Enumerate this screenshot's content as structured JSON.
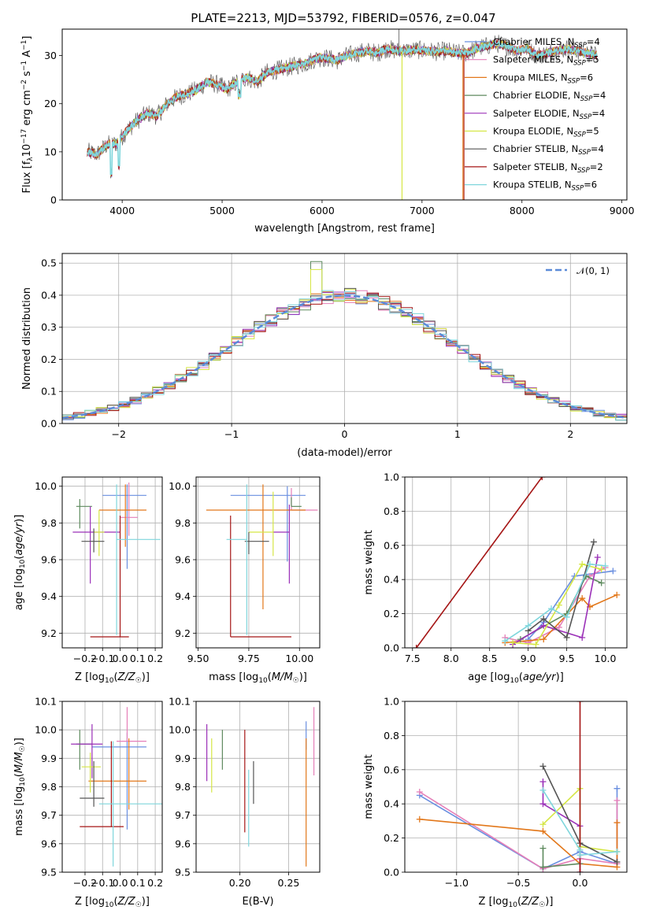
{
  "figure": {
    "title": "PLATE=2213, MJD=53792, FIBERID=0576, z=0.047"
  },
  "models": [
    {
      "name": "Chabrier MILES, N",
      "sub": "SSP",
      "n": "=4",
      "color": "#6a8fe0"
    },
    {
      "name": "Salpeter MILES, N",
      "sub": "SSP",
      "n": "=5",
      "color": "#e57fb8"
    },
    {
      "name": "Kroupa MILES, N",
      "sub": "SSP",
      "n": "=6",
      "color": "#e2771a"
    },
    {
      "name": "Chabrier ELODIE, N",
      "sub": "SSP",
      "n": "=4",
      "color": "#5e8a5e"
    },
    {
      "name": "Salpeter ELODIE, N",
      "sub": "SSP",
      "n": "=4",
      "color": "#9b30b8"
    },
    {
      "name": "Kroupa ELODIE, N",
      "sub": "SSP",
      "n": "=5",
      "color": "#d5e645"
    },
    {
      "name": "Chabrier STELIB, N",
      "sub": "SSP",
      "n": "=4",
      "color": "#555555"
    },
    {
      "name": "Salpeter STELIB, N",
      "sub": "SSP",
      "n": "=2",
      "color": "#a51515"
    },
    {
      "name": "Kroupa STELIB, N",
      "sub": "SSP",
      "n": "=6",
      "color": "#7fd6dc"
    }
  ],
  "chart_data": [
    {
      "id": "spectrum",
      "type": "line",
      "title": "PLATE=2213, MJD=53792, FIBERID=0576, z=0.047",
      "xlabel": "wavelength [Angstrom, rest frame]",
      "ylabel": "Flux [f_λ10^-17 erg cm^-2 s^-1 A^-1]",
      "xlim": [
        3400,
        9050
      ],
      "ylim": [
        0,
        35.5
      ],
      "xticks": [
        4000,
        5000,
        6000,
        7000,
        8000,
        9000
      ],
      "yticks": [
        0,
        10,
        20,
        30
      ],
      "grid": false,
      "legend": "top-right",
      "x": [
        3650,
        3750,
        3850,
        3950,
        4050,
        4150,
        4250,
        4350,
        4450,
        4550,
        4650,
        4750,
        4850,
        4950,
        5050,
        5150,
        5250,
        5350,
        5450,
        5550,
        5650,
        5750,
        5850,
        5950,
        6050,
        6150,
        6250,
        6350,
        6450,
        6550,
        6650,
        6750,
        6850,
        6950,
        7050,
        7150,
        7250,
        7350,
        7450,
        7550,
        7650,
        7750,
        7850,
        7950,
        8050,
        8150,
        8250,
        8350,
        8450,
        8550,
        8650,
        8750
      ],
      "y": [
        10.0,
        9.5,
        11.5,
        11.8,
        14.5,
        16.5,
        18.0,
        17.5,
        20.0,
        21.5,
        22.0,
        23.0,
        24.5,
        24.0,
        23.0,
        24.5,
        25.5,
        24.5,
        26.5,
        27.0,
        27.5,
        28.0,
        28.5,
        29.5,
        29.5,
        29.0,
        30.0,
        30.5,
        31.0,
        30.5,
        31.5,
        31.0,
        31.0,
        31.2,
        31.0,
        30.8,
        31.0,
        30.5,
        30.5,
        31.5,
        32.0,
        32.5,
        32.0,
        31.0,
        31.5,
        30.0,
        30.5,
        31.0,
        31.5,
        31.0,
        30.5,
        30.0
      ]
    },
    {
      "id": "residuals",
      "type": "histogram",
      "xlabel": "(data-model)/error",
      "ylabel": "Normed distribution",
      "xlim": [
        -2.5,
        2.5
      ],
      "ylim": [
        0,
        0.53
      ],
      "xticks": [
        -2,
        -1,
        0,
        1,
        2
      ],
      "yticks": [
        0.0,
        0.1,
        0.2,
        0.3,
        0.4,
        0.5
      ],
      "grid": true,
      "legend": "top-right",
      "reference_label": "N(0,1)",
      "reference_color": "#5b8bd8",
      "bin_width": 0.1
    },
    {
      "id": "age_vs_Z",
      "type": "errorbar",
      "xlabel": "Z [log10(Z/Z☉)]",
      "ylabel": "age [log10(age/yr)]",
      "xlim": [
        -0.33,
        0.24
      ],
      "ylim": [
        9.12,
        10.05
      ],
      "xticks": [
        -0.2,
        -0.1,
        0.0,
        0.1,
        0.2
      ],
      "yticks": [
        9.2,
        9.4,
        9.6,
        9.8,
        10.0
      ],
      "grid": true,
      "points": [
        {
          "x": 0.04,
          "y": 9.95,
          "xerr": [
            0.14,
            0.11
          ],
          "yerr": [
            0.4,
            0.06
          ]
        },
        {
          "x": 0.05,
          "y": 9.83,
          "xerr": [
            0.05,
            0.05
          ],
          "yerr": [
            0.1,
            0.19
          ]
        },
        {
          "x": 0.03,
          "y": 9.87,
          "xerr": [
            0.15,
            0.12
          ],
          "yerr": [
            0.2,
            0.14
          ]
        },
        {
          "x": -0.23,
          "y": 9.89,
          "xerr": [
            0.02,
            0.07
          ],
          "yerr": [
            0.12,
            0.04
          ]
        },
        {
          "x": -0.17,
          "y": 9.75,
          "xerr": [
            0.1,
            0.17
          ],
          "yerr": [
            0.28,
            0.14
          ]
        },
        {
          "x": -0.12,
          "y": 9.75,
          "xerr": [
            0.03,
            0.03
          ],
          "yerr": [
            0.13,
            0.12
          ]
        },
        {
          "x": -0.15,
          "y": 9.7,
          "xerr": [
            0.07,
            0.06
          ],
          "yerr": [
            0.06,
            0.07
          ]
        },
        {
          "x": 0.0,
          "y": 9.18,
          "xerr": [
            0.17,
            0.05
          ],
          "yerr": [
            0.0,
            0.66
          ]
        },
        {
          "x": -0.02,
          "y": 9.71,
          "xerr": [
            0.0,
            0.25
          ],
          "yerr": [
            0.52,
            0.3
          ]
        }
      ]
    },
    {
      "id": "age_vs_mass",
      "type": "errorbar",
      "xlabel": "mass [log10(M/M☉)]",
      "ylabel": "",
      "xlim": [
        9.49,
        10.1
      ],
      "ylim": [
        9.12,
        10.05
      ],
      "xticks": [
        9.5,
        9.75,
        10.0
      ],
      "yticks": [
        9.2,
        9.4,
        9.6,
        9.8,
        10.0
      ],
      "grid": true,
      "points": [
        {
          "x": 9.94,
          "y": 9.95,
          "xerr": [
            0.28,
            0.09
          ],
          "yerr": [
            0.36,
            0.05
          ]
        },
        {
          "x": 9.96,
          "y": 9.87,
          "xerr": [
            0.0,
            0.13
          ],
          "yerr": [
            0.0,
            0.12
          ]
        },
        {
          "x": 9.82,
          "y": 9.87,
          "xerr": [
            0.28,
            0.21
          ],
          "yerr": [
            0.54,
            0.14
          ]
        },
        {
          "x": 9.96,
          "y": 9.89,
          "xerr": [
            0.0,
            0.05
          ],
          "yerr": [
            0.0,
            0.05
          ]
        },
        {
          "x": 9.95,
          "y": 9.75,
          "xerr": [
            0.08,
            0.0
          ],
          "yerr": [
            0.28,
            0.15
          ]
        },
        {
          "x": 9.87,
          "y": 9.75,
          "xerr": [
            0.12,
            0.0
          ],
          "yerr": [
            0.13,
            0.22
          ]
        },
        {
          "x": 9.75,
          "y": 9.7,
          "xerr": [
            0.02,
            0.1
          ],
          "yerr": [
            0.07,
            0.05
          ]
        },
        {
          "x": 9.66,
          "y": 9.18,
          "xerr": [
            0.0,
            0.3
          ],
          "yerr": [
            0.0,
            0.66
          ]
        },
        {
          "x": 9.74,
          "y": 9.71,
          "xerr": [
            0.1,
            0.0
          ],
          "yerr": [
            0.52,
            0.3
          ]
        }
      ]
    },
    {
      "id": "weight_vs_age",
      "type": "line",
      "xlabel": "age [log10(age/yr)]",
      "ylabel": "mass weight",
      "xlim": [
        7.4,
        10.28
      ],
      "ylim": [
        0,
        1.0
      ],
      "xticks": [
        7.5,
        8.0,
        8.5,
        9.0,
        9.5,
        10.0
      ],
      "yticks": [
        0.0,
        0.2,
        0.4,
        0.6,
        0.8,
        1.0
      ],
      "grid": true,
      "series": [
        {
          "x": [
            9.0,
            9.2,
            9.6,
            10.1
          ],
          "y": [
            0.05,
            0.15,
            0.42,
            0.45
          ]
        },
        {
          "x": [
            8.7,
            9.0,
            9.4,
            9.8,
            10.0
          ],
          "y": [
            0.06,
            0.03,
            0.12,
            0.42,
            0.47
          ]
        },
        {
          "x": [
            8.7,
            9.2,
            9.7,
            9.8,
            10.15
          ],
          "y": [
            0.03,
            0.05,
            0.29,
            0.24,
            0.31
          ]
        },
        {
          "x": [
            8.9,
            9.5,
            9.75,
            9.95
          ],
          "y": [
            0.05,
            0.2,
            0.42,
            0.38
          ]
        },
        {
          "x": [
            8.8,
            9.2,
            9.7,
            9.9
          ],
          "y": [
            0.02,
            0.13,
            0.06,
            0.53
          ]
        },
        {
          "x": [
            8.8,
            9.1,
            9.4,
            9.7,
            9.95
          ],
          "y": [
            0.03,
            0.02,
            0.25,
            0.49,
            0.46
          ]
        },
        {
          "x": [
            9.0,
            9.2,
            9.5,
            9.85
          ],
          "y": [
            0.1,
            0.17,
            0.06,
            0.62
          ]
        },
        {
          "x": [
            7.55,
            9.18
          ],
          "y": [
            0.0,
            1.0
          ]
        },
        {
          "x": [
            8.7,
            9.0,
            9.3,
            9.5,
            9.8,
            10.0
          ],
          "y": [
            0.04,
            0.13,
            0.23,
            0.18,
            0.49,
            0.48
          ]
        }
      ]
    },
    {
      "id": "mass_vs_Z",
      "type": "errorbar",
      "xlabel": "Z [log10(Z/Z☉)]",
      "ylabel": "mass [log10(M/M☉)]",
      "xlim": [
        -0.33,
        0.24
      ],
      "ylim": [
        9.5,
        10.1
      ],
      "xticks": [
        -0.2,
        -0.1,
        0.0,
        0.1,
        0.2
      ],
      "yticks": [
        9.5,
        9.6,
        9.7,
        9.8,
        9.9,
        10.0,
        10.1
      ],
      "grid": true,
      "points": [
        {
          "x": 0.04,
          "y": 9.94,
          "xerr": [
            0.2,
            0.11
          ],
          "yerr": [
            0.29,
            0.05
          ]
        },
        {
          "x": 0.04,
          "y": 9.96,
          "xerr": [
            0.06,
            0.11
          ],
          "yerr": [
            0.0,
            0.12
          ]
        },
        {
          "x": 0.05,
          "y": 9.82,
          "xerr": [
            0.23,
            0.1
          ],
          "yerr": [
            0.1,
            0.15
          ]
        },
        {
          "x": -0.23,
          "y": 9.95,
          "xerr": [
            0.02,
            0.07
          ],
          "yerr": [
            0.09,
            0.05
          ]
        },
        {
          "x": -0.16,
          "y": 9.95,
          "xerr": [
            0.12,
            0.06
          ],
          "yerr": [
            0.12,
            0.07
          ]
        },
        {
          "x": -0.17,
          "y": 9.87,
          "xerr": [
            0.05,
            0.06
          ],
          "yerr": [
            0.09,
            0.05
          ]
        },
        {
          "x": -0.15,
          "y": 9.76,
          "xerr": [
            0.08,
            0.06
          ],
          "yerr": [
            0.03,
            0.13
          ]
        },
        {
          "x": -0.05,
          "y": 9.66,
          "xerr": [
            0.18,
            0.07
          ],
          "yerr": [
            0.0,
            0.3
          ]
        },
        {
          "x": -0.04,
          "y": 9.74,
          "xerr": [
            0.08,
            0.28
          ],
          "yerr": [
            0.22,
            0.22
          ]
        }
      ]
    },
    {
      "id": "mass_vs_ebv",
      "type": "errorbar",
      "xlabel": "E(B-V)",
      "ylabel": "",
      "xlim": [
        0.155,
        0.282
      ],
      "ylim": [
        9.5,
        10.1
      ],
      "xticks": [
        0.2,
        0.25
      ],
      "yticks": [
        9.5,
        9.6,
        9.7,
        9.8,
        9.9,
        10.0,
        10.1
      ],
      "grid": true,
      "points": [
        {
          "x": 0.268,
          "y": 9.97,
          "xerr": [
            0,
            0
          ],
          "yerr": [
            0.04,
            0.06
          ]
        },
        {
          "x": 0.276,
          "y": 9.96,
          "xerr": [
            0,
            0
          ],
          "yerr": [
            0.12,
            0.12
          ]
        },
        {
          "x": 0.268,
          "y": 9.8,
          "xerr": [
            0,
            0
          ],
          "yerr": [
            0.28,
            0.17
          ]
        },
        {
          "x": 0.182,
          "y": 9.93,
          "xerr": [
            0,
            0
          ],
          "yerr": [
            0.07,
            0.07
          ]
        },
        {
          "x": 0.166,
          "y": 9.91,
          "xerr": [
            0,
            0
          ],
          "yerr": [
            0.09,
            0.11
          ]
        },
        {
          "x": 0.171,
          "y": 9.9,
          "xerr": [
            0,
            0
          ],
          "yerr": [
            0.12,
            0.07
          ]
        },
        {
          "x": 0.214,
          "y": 9.81,
          "xerr": [
            0,
            0
          ],
          "yerr": [
            0.07,
            0.08
          ]
        },
        {
          "x": 0.205,
          "y": 9.82,
          "xerr": [
            0,
            0
          ],
          "yerr": [
            0.18,
            0.18
          ]
        },
        {
          "x": 0.209,
          "y": 9.73,
          "xerr": [
            0,
            0
          ],
          "yerr": [
            0.14,
            0.13
          ]
        }
      ]
    },
    {
      "id": "weight_vs_Z",
      "type": "line",
      "xlabel": "Z [log10(Z/Z☉)]",
      "ylabel": "mass weight",
      "xlim": [
        -1.42,
        0.38
      ],
      "ylim": [
        0,
        1.0
      ],
      "xticks": [
        -1.0,
        -0.5,
        0.0
      ],
      "yticks": [
        0.0,
        0.2,
        0.4,
        0.6,
        0.8,
        1.0
      ],
      "grid": true,
      "series": [
        {
          "x": [
            -1.3,
            -0.3,
            0.0,
            0.3,
            0.3
          ],
          "y": [
            0.45,
            0.02,
            0.12,
            0.05,
            0.49
          ]
        },
        {
          "x": [
            -1.3,
            -0.3,
            0.0,
            0.3,
            0.3
          ],
          "y": [
            0.47,
            0.02,
            0.08,
            0.05,
            0.42
          ]
        },
        {
          "x": [
            -1.3,
            -0.3,
            0.0,
            0.3,
            0.3
          ],
          "y": [
            0.31,
            0.24,
            0.05,
            0.03,
            0.29
          ]
        },
        {
          "x": [
            -0.3,
            -0.3,
            0.0
          ],
          "y": [
            0.14,
            0.03,
            0.05
          ]
        },
        {
          "x": [
            -0.3,
            -0.3,
            0.0,
            0.0
          ],
          "y": [
            0.53,
            0.4,
            0.27,
            0.0
          ]
        },
        {
          "x": [
            -0.3,
            0.0,
            0.0,
            0.3
          ],
          "y": [
            0.28,
            0.49,
            0.15,
            0.12
          ]
        },
        {
          "x": [
            -0.3,
            0.0,
            0.3
          ],
          "y": [
            0.62,
            0.17,
            0.06
          ]
        },
        {
          "x": [
            0.0,
            0.0
          ],
          "y": [
            0.0,
            1.0
          ]
        },
        {
          "x": [
            -0.3,
            0.0,
            0.0,
            0.3
          ],
          "y": [
            0.48,
            0.13,
            0.1,
            0.12
          ]
        }
      ]
    }
  ]
}
